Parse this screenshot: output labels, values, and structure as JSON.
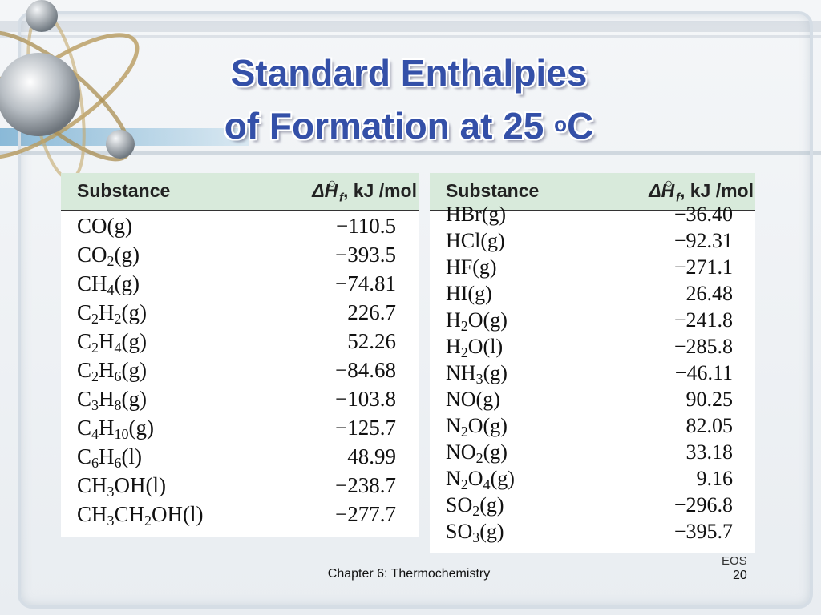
{
  "slide": {
    "title_line1": "Standard Enthalpies",
    "title_line2": "of Formation at 25 ",
    "title_deg": "o",
    "title_unit": "C",
    "footer": "Chapter 6: Thermochemistry",
    "eos": "EOS",
    "page_number": "20"
  },
  "table_header": {
    "substance": "Substance",
    "delta": "ΔH",
    "f": "f",
    "deg": "○",
    "units": ", kJ /mol"
  },
  "left_table": [
    {
      "parts": [
        "CO(g)"
      ],
      "value": "−110.5"
    },
    {
      "parts": [
        "CO",
        "2",
        "(g)"
      ],
      "value": "−393.5"
    },
    {
      "parts": [
        "CH",
        "4",
        "(g)"
      ],
      "value": "−74.81"
    },
    {
      "parts": [
        "C",
        "2",
        "H",
        "2",
        "(g)"
      ],
      "value": "226.7"
    },
    {
      "parts": [
        "C",
        "2",
        "H",
        "4",
        "(g)"
      ],
      "value": "52.26"
    },
    {
      "parts": [
        "C",
        "2",
        "H",
        "6",
        "(g)"
      ],
      "value": "−84.68"
    },
    {
      "parts": [
        "C",
        "3",
        "H",
        "8",
        "(g)"
      ],
      "value": "−103.8"
    },
    {
      "parts": [
        "C",
        "4",
        "H",
        "10",
        "(g)"
      ],
      "value": "−125.7"
    },
    {
      "parts": [
        "C",
        "6",
        "H",
        "6",
        "(l)"
      ],
      "value": "48.99"
    },
    {
      "parts": [
        "CH",
        "3",
        "OH(l)"
      ],
      "value": "−238.7"
    },
    {
      "parts": [
        "CH",
        "3",
        "CH",
        "2",
        "OH(l)"
      ],
      "value": "−277.7"
    }
  ],
  "right_table": [
    {
      "parts": [
        "HBr(g)"
      ],
      "value": "−36.40"
    },
    {
      "parts": [
        "HCl(g)"
      ],
      "value": "−92.31"
    },
    {
      "parts": [
        "HF(g)"
      ],
      "value": "−271.1"
    },
    {
      "parts": [
        "HI(g)"
      ],
      "value": "26.48"
    },
    {
      "parts": [
        "H",
        "2",
        "O(g)"
      ],
      "value": "−241.8"
    },
    {
      "parts": [
        "H",
        "2",
        "O(l)"
      ],
      "value": "−285.8"
    },
    {
      "parts": [
        "NH",
        "3",
        "(g)"
      ],
      "value": "−46.11"
    },
    {
      "parts": [
        "NO(g)"
      ],
      "value": "90.25"
    },
    {
      "parts": [
        "N",
        "2",
        "O(g)"
      ],
      "value": "82.05"
    },
    {
      "parts": [
        "NO",
        "2",
        "(g)"
      ],
      "value": "33.18"
    },
    {
      "parts": [
        "N",
        "2",
        "O",
        "4",
        "(g)"
      ],
      "value": "9.16"
    },
    {
      "parts": [
        "SO",
        "2",
        "(g)"
      ],
      "value": "−296.8"
    },
    {
      "parts": [
        "SO",
        "3",
        "(g)"
      ],
      "value": "−395.7"
    }
  ],
  "colors": {
    "title": "#3450a8",
    "header_bg": "#d8eadb"
  },
  "icons": [
    "atom-icon"
  ]
}
